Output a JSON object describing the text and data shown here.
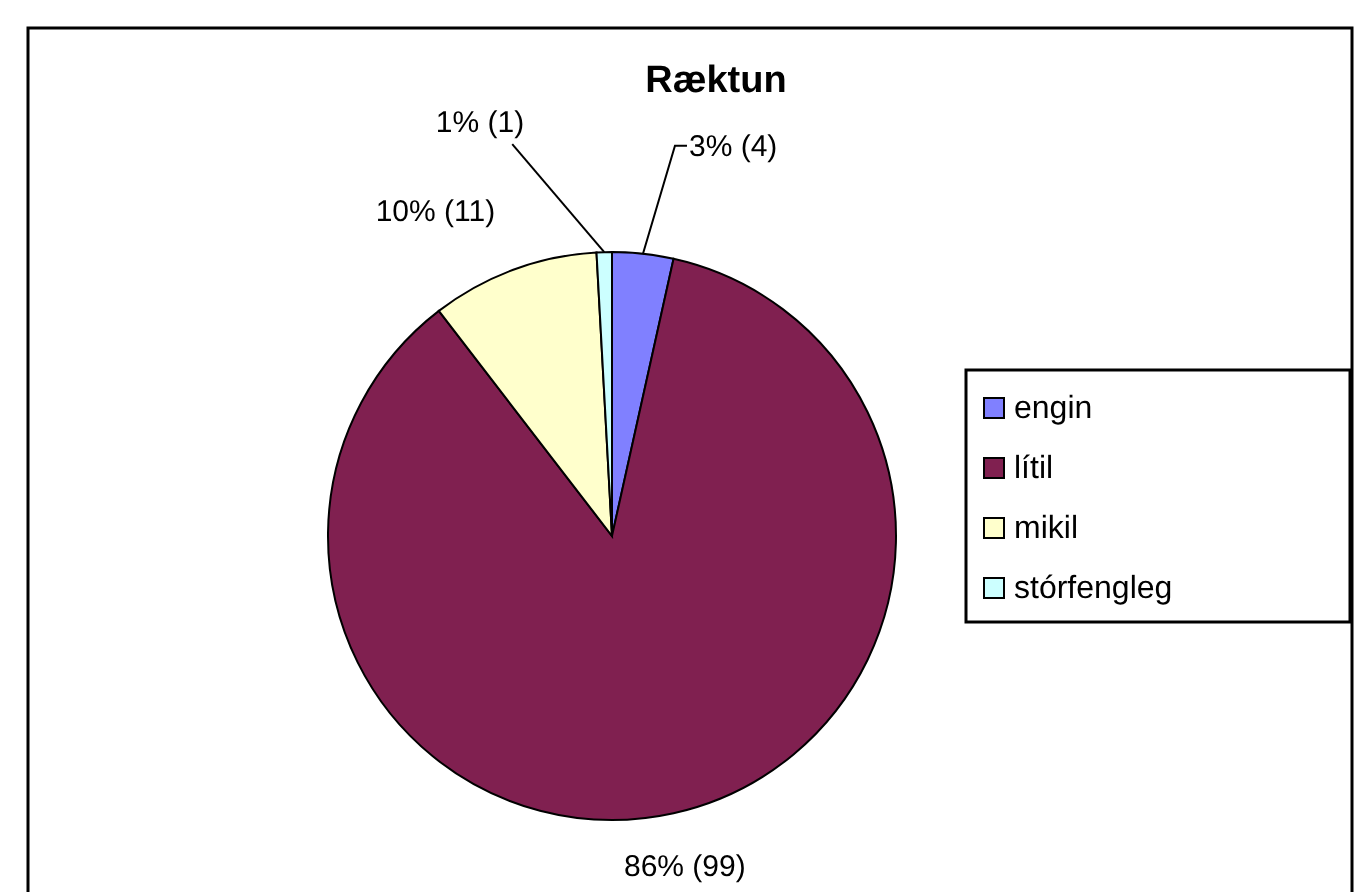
{
  "chart_data": {
    "type": "pie",
    "title": "Ræktun",
    "categories": [
      "engin",
      "lítil",
      "mikil",
      "stórfengleg"
    ],
    "values": [
      4,
      99,
      11,
      1
    ],
    "colors": [
      "#8080ff",
      "#802050",
      "#ffffcc",
      "#ccffff"
    ],
    "value_labels": [
      "3% (4)",
      "86% (99)",
      "10% (11)",
      "1% (1)"
    ],
    "legend": "right"
  }
}
